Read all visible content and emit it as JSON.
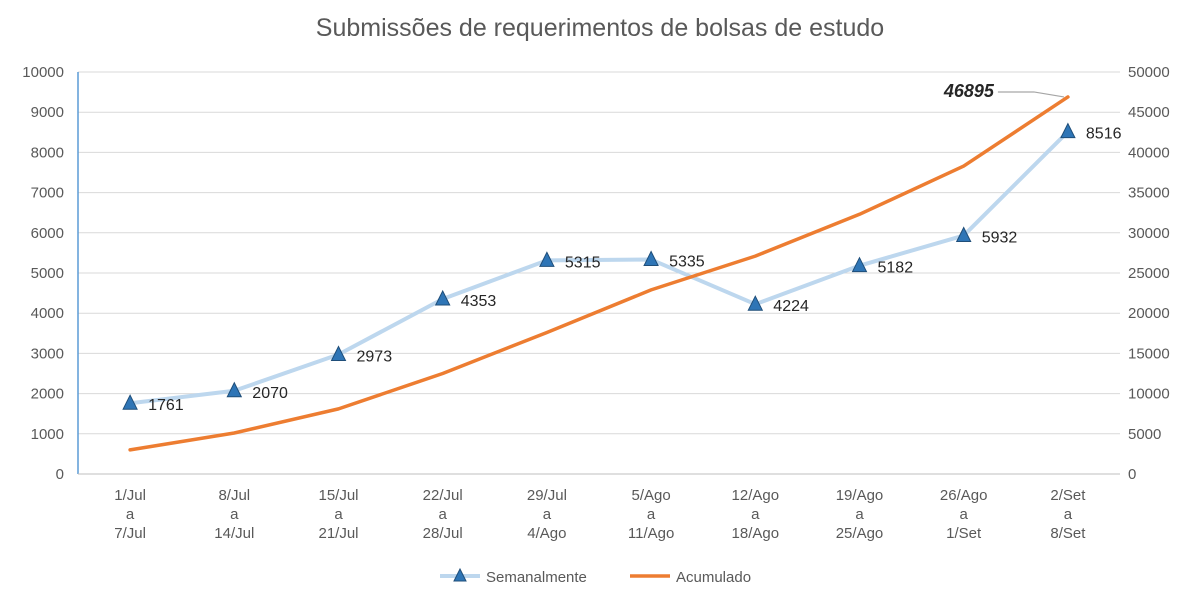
{
  "chart_data": {
    "type": "line",
    "title": "Submissões de requerimentos de bolsas de estudo",
    "categories": [
      [
        "1/Jul",
        "a",
        "7/Jul"
      ],
      [
        "8/Jul",
        "a",
        "14/Jul"
      ],
      [
        "15/Jul",
        "a",
        "21/Jul"
      ],
      [
        "22/Jul",
        "a",
        "28/Jul"
      ],
      [
        "29/Jul",
        "a",
        "4/Ago"
      ],
      [
        "5/Ago",
        "a",
        "11/Ago"
      ],
      [
        "12/Ago",
        "a",
        "18/Ago"
      ],
      [
        "19/Ago",
        "a",
        "25/Ago"
      ],
      [
        "26/Ago",
        "a",
        "1/Set"
      ],
      [
        "2/Set",
        "a",
        "8/Set"
      ]
    ],
    "series": [
      {
        "name": "Semanalmente",
        "axis": "left",
        "color": "#bdd7ee",
        "marker": "triangle",
        "marker_color": "#2e75b6",
        "values": [
          1761,
          2070,
          2973,
          4353,
          5315,
          5335,
          4224,
          5182,
          5932,
          8516
        ],
        "data_labels": [
          "1761",
          "2070",
          "2973",
          "4353",
          "5315",
          "5335",
          "4224",
          "5182",
          "5932",
          "8516"
        ]
      },
      {
        "name": "Acumulado",
        "axis": "right",
        "color": "#ed7d31",
        "values": [
          3000,
          5100,
          8100,
          12500,
          17600,
          22900,
          27100,
          32300,
          38300,
          46895
        ],
        "annotation": {
          "index": 9,
          "text": "46895"
        }
      }
    ],
    "y_left": {
      "min": 0,
      "max": 10000,
      "step": 1000,
      "ticks": [
        "0",
        "1000",
        "2000",
        "3000",
        "4000",
        "5000",
        "6000",
        "7000",
        "8000",
        "9000",
        "10000"
      ]
    },
    "y_right": {
      "min": 0,
      "max": 50000,
      "step": 5000,
      "ticks": [
        "0",
        "5000",
        "10000",
        "15000",
        "20000",
        "25000",
        "30000",
        "35000",
        "40000",
        "45000",
        "50000"
      ]
    },
    "grid": true,
    "legend": "bottom"
  }
}
